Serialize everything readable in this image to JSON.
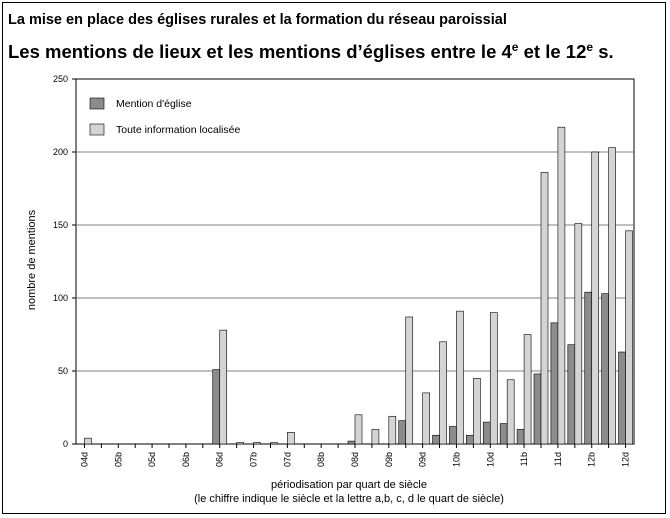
{
  "header": {
    "suptitle": "La mise en place des églises rurales et la formation du réseau paroissial",
    "title_part1": "Les mentions de lieux et les mentions d’églises entre le 4",
    "title_sup1": "e",
    "title_part2": " et le 12",
    "title_sup2": "e",
    "title_part3": " s."
  },
  "chart_data": {
    "type": "bar",
    "ylabel": "nombre de mentions",
    "xlabel": "périodisation par quart de siècle",
    "xlabel_note": "(le chiffre indique le siècle et la lettre a,b, c, d le quart de siècle)",
    "ylim": [
      0,
      250
    ],
    "yticks": [
      0,
      50,
      100,
      150,
      200,
      250
    ],
    "grid": true,
    "legend_position": "top-left",
    "colors": {
      "eglise": "#8c8c8c",
      "toute": "#d4d4d4"
    },
    "categories": [
      "04d",
      "05a",
      "05b",
      "05c",
      "05d",
      "06a",
      "06b",
      "06c",
      "06d",
      "07a",
      "07b",
      "07c",
      "07d",
      "08a",
      "08b",
      "08c",
      "08d",
      "09a",
      "09b",
      "09c",
      "09d",
      "10a",
      "10b",
      "10c",
      "10d",
      "11a",
      "11b",
      "11c",
      "11d",
      "12a",
      "12b",
      "12c",
      "12d"
    ],
    "xtick_labels": [
      "04d",
      "",
      "05b",
      "",
      "05d",
      "",
      "06b",
      "",
      "06d",
      "",
      "07b",
      "",
      "07d",
      "",
      "08b",
      "",
      "08d",
      "",
      "09b",
      "",
      "09d",
      "",
      "10b",
      "",
      "10d",
      "",
      "11b",
      "",
      "11d",
      "",
      "12b",
      "",
      "12d"
    ],
    "series": [
      {
        "name": "Mention d'église",
        "values": [
          0,
          0,
          0,
          0,
          0,
          0,
          0,
          0,
          51,
          0,
          0,
          0,
          0,
          0,
          0,
          0,
          2,
          0,
          0,
          16,
          0,
          6,
          12,
          6,
          15,
          14,
          10,
          48,
          83,
          68,
          104,
          103,
          63
        ]
      },
      {
        "name": "Toute information localisée",
        "values": [
          4,
          0,
          0,
          0,
          0,
          0,
          0,
          0,
          78,
          1,
          1,
          1,
          8,
          0,
          0,
          0,
          20,
          10,
          19,
          87,
          35,
          70,
          91,
          45,
          90,
          44,
          75,
          186,
          217,
          151,
          200,
          203,
          146
        ]
      }
    ]
  }
}
